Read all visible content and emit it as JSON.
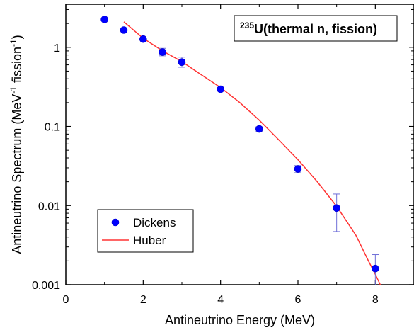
{
  "chart_data": {
    "type": "scatter",
    "title": "",
    "annotation": {
      "superscript": "235",
      "text": "U(thermal n, fission)"
    },
    "xlabel": "Antineutrino Energy (MeV)",
    "ylabel": {
      "part1": "Antineutrino Spectrum (MeV",
      "sup1": "-1",
      "part2": " fission",
      "sup2": "-1",
      "part3": ")"
    },
    "xlim": [
      0,
      9
    ],
    "ylim": [
      0.001,
      3.5
    ],
    "yscale": "log",
    "xticks": [
      0,
      2,
      4,
      6,
      8
    ],
    "xtick_labels": [
      "0",
      "2",
      "4",
      "6",
      "8"
    ],
    "yticks": [
      0.001,
      0.01,
      0.1,
      1
    ],
    "ytick_labels": [
      "0.001",
      "0.01",
      "0.1",
      "1"
    ],
    "legend_position": "bottom-left",
    "series": [
      {
        "name": "Dickens",
        "kind": "scatter",
        "color": "#0000ff",
        "points": [
          {
            "x": 1.0,
            "y": 2.25
          },
          {
            "x": 1.5,
            "y": 1.65
          },
          {
            "x": 2.0,
            "y": 1.27
          },
          {
            "x": 2.5,
            "y": 0.87,
            "yerr_low": 0.78,
            "yerr_high": 0.97
          },
          {
            "x": 3.0,
            "y": 0.65,
            "yerr_low": 0.56,
            "yerr_high": 0.75
          },
          {
            "x": 4.0,
            "y": 0.295
          },
          {
            "x": 5.0,
            "y": 0.093,
            "yerr_low": 0.087,
            "yerr_high": 0.099
          },
          {
            "x": 6.0,
            "y": 0.029,
            "yerr_low": 0.026,
            "yerr_high": 0.032
          },
          {
            "x": 7.0,
            "y": 0.0093,
            "yerr_low": 0.0047,
            "yerr_high": 0.014
          },
          {
            "x": 8.0,
            "y": 0.0016,
            "yerr_low": 0.0008,
            "yerr_high": 0.0024
          }
        ]
      },
      {
        "name": "Huber",
        "kind": "line",
        "color": "#ff3333",
        "points": [
          {
            "x": 1.5,
            "y": 2.1
          },
          {
            "x": 2.0,
            "y": 1.3
          },
          {
            "x": 2.5,
            "y": 0.9
          },
          {
            "x": 3.0,
            "y": 0.66
          },
          {
            "x": 3.5,
            "y": 0.45
          },
          {
            "x": 4.0,
            "y": 0.31
          },
          {
            "x": 4.5,
            "y": 0.2
          },
          {
            "x": 5.0,
            "y": 0.12
          },
          {
            "x": 5.5,
            "y": 0.068
          },
          {
            "x": 6.0,
            "y": 0.038
          },
          {
            "x": 6.5,
            "y": 0.02
          },
          {
            "x": 7.0,
            "y": 0.0098
          },
          {
            "x": 7.5,
            "y": 0.0042
          },
          {
            "x": 7.8,
            "y": 0.0021
          },
          {
            "x": 8.0,
            "y": 0.00135
          },
          {
            "x": 8.15,
            "y": 0.00095
          }
        ]
      }
    ]
  }
}
